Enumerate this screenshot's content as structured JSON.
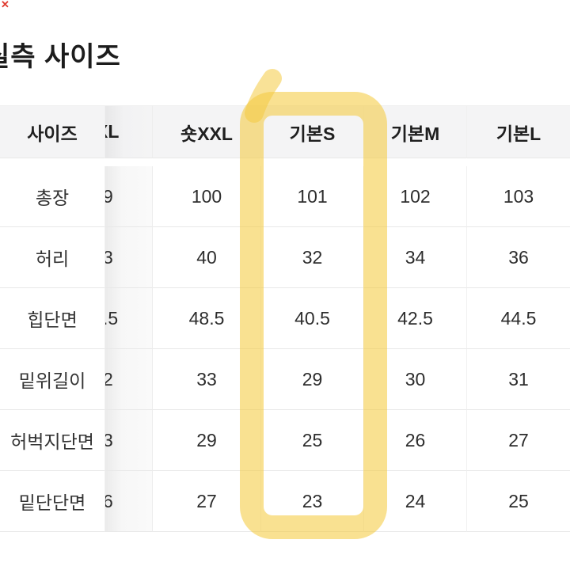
{
  "corner_mark": "✕",
  "title": "실측 사이즈",
  "table": {
    "columns": [
      {
        "label": "사이즈"
      },
      {
        "label": "XL",
        "partially_hidden": true
      },
      {
        "label": "숏XXL"
      },
      {
        "label": "기본S"
      },
      {
        "label": "기본M"
      },
      {
        "label": "기본L"
      }
    ],
    "rows": [
      {
        "label": "총장",
        "values": [
          "9",
          "100",
          "101",
          "102",
          "103"
        ]
      },
      {
        "label": "허리",
        "values": [
          "3",
          "40",
          "32",
          "34",
          "36"
        ]
      },
      {
        "label": "힙단면",
        "values": [
          ".5",
          "48.5",
          "40.5",
          "42.5",
          "44.5"
        ]
      },
      {
        "label": "밑위길이",
        "values": [
          "2",
          "33",
          "29",
          "30",
          "31"
        ]
      },
      {
        "label": "허벅지단면",
        "values": [
          "3",
          "29",
          "25",
          "26",
          "27"
        ]
      },
      {
        "label": "밑단단면",
        "values": [
          "6",
          "27",
          "23",
          "24",
          "25"
        ]
      }
    ]
  },
  "highlight": {
    "highlighted_column": "기본S",
    "color": "#F4CB42"
  }
}
